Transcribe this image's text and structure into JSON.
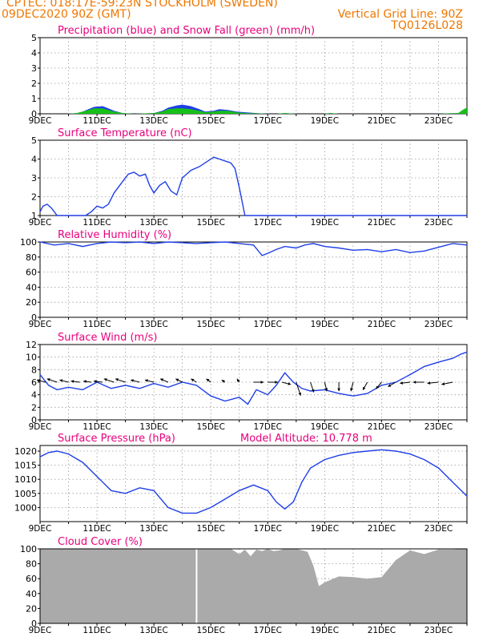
{
  "header": {
    "line1": "CPTEC:   018:17E-59:23N   STOCKHOLM (SWEDEN)",
    "line2_left": "09DEC2020 90Z (GMT)",
    "line2_right": "Vertical Grid Line: 90Z",
    "line3_right": "TQ0126L028",
    "color": "#ee7700"
  },
  "colors": {
    "title": "#e8007c",
    "precip": "#1f3fe8",
    "snow": "#17c017",
    "line": "#1f3fe8",
    "cloud": "#aaaaaa",
    "arrow": "#000000"
  },
  "x_ticks": [
    "9DEC",
    "11DEC",
    "13DEC",
    "15DEC",
    "17DEC",
    "19DEC",
    "21DEC",
    "23DEC"
  ],
  "chart_data": [
    {
      "type": "area",
      "title": "Precipitation (blue) and Snow Fall (green) (mm/h)",
      "ylim": [
        0,
        5
      ],
      "yticks": [
        "0",
        "1",
        "2",
        "3",
        "4",
        "5"
      ],
      "series": [
        {
          "name": "Precipitation",
          "x": [
            0,
            1.0,
            1.3,
            1.5,
            1.7,
            1.9,
            2.2,
            2.4,
            2.6,
            2.9,
            3.3,
            4.0,
            4.3,
            4.5,
            4.8,
            5.0,
            5.3,
            5.6,
            5.8,
            6.1,
            6.3,
            6.6,
            6.9,
            7.2,
            7.6,
            8.0,
            8.3,
            8.6,
            9.0,
            9.5,
            10.0,
            10.2,
            10.5,
            11.0,
            12.0,
            13.0,
            13.8,
            14.0,
            14.4,
            14.7,
            14.85,
            14.95,
            15.0
          ],
          "values": [
            0,
            0,
            0.05,
            0.15,
            0.3,
            0.45,
            0.5,
            0.35,
            0.2,
            0.05,
            0,
            0.05,
            0.2,
            0.4,
            0.55,
            0.6,
            0.5,
            0.3,
            0.15,
            0.2,
            0.3,
            0.25,
            0.15,
            0.1,
            0.05,
            0,
            0,
            0.05,
            0,
            0,
            0,
            0.05,
            0,
            0,
            0,
            0,
            0,
            0,
            0.03,
            0.05,
            0.25,
            0.35,
            0.4
          ]
        },
        {
          "name": "Snow Fall",
          "x": [
            0,
            1.0,
            1.3,
            1.5,
            1.7,
            1.9,
            2.2,
            2.4,
            2.6,
            2.9,
            3.3,
            4.0,
            4.3,
            4.5,
            4.8,
            5.0,
            5.3,
            5.6,
            5.8,
            6.1,
            6.3,
            6.6,
            6.9,
            7.2,
            7.6,
            8.0,
            8.3,
            8.6,
            9.0,
            9.5,
            10.0,
            10.2,
            10.5,
            11.0,
            12.0,
            13.0,
            13.8,
            14.0,
            14.4,
            14.7,
            14.85,
            14.95,
            15.0
          ],
          "values": [
            0,
            0,
            0.05,
            0.15,
            0.25,
            0.35,
            0.35,
            0.25,
            0.15,
            0.05,
            0,
            0.05,
            0.15,
            0.3,
            0.35,
            0.35,
            0.3,
            0.2,
            0.1,
            0.15,
            0.2,
            0.2,
            0.1,
            0.05,
            0.03,
            0,
            0,
            0.05,
            0,
            0,
            0,
            0.05,
            0,
            0,
            0,
            0,
            0,
            0,
            0.03,
            0.05,
            0.25,
            0.35,
            0.4
          ]
        }
      ]
    },
    {
      "type": "line",
      "title": "Surface Temperature (nC)",
      "ylim": [
        1,
        5
      ],
      "yticks": [
        "1",
        "2",
        "3",
        "4",
        "5"
      ],
      "series": [
        {
          "name": "Temperature",
          "x": [
            0,
            0.1,
            0.25,
            0.4,
            0.6,
            1.0,
            1.6,
            1.8,
            2.0,
            2.2,
            2.4,
            2.6,
            2.9,
            3.1,
            3.3,
            3.5,
            3.7,
            3.85,
            4.0,
            4.2,
            4.4,
            4.6,
            4.8,
            5.0,
            5.3,
            5.6,
            5.9,
            6.1,
            6.3,
            6.5,
            6.7,
            6.85,
            7.0,
            7.2,
            7.5,
            8.0,
            8.5,
            9.0,
            9.5,
            10.0,
            11.0,
            12.0,
            13.0,
            14.0,
            15.0
          ],
          "x_note": "",
          "values": [
            1.2,
            1.5,
            1.6,
            1.4,
            1.0,
            0.8,
            0.8,
            1.2,
            1.5,
            1.4,
            1.6,
            2.2,
            2.8,
            3.2,
            3.3,
            3.1,
            3.2,
            2.6,
            2.2,
            2.6,
            2.8,
            2.3,
            2.1,
            3.0,
            3.4,
            3.6,
            3.9,
            4.1,
            4.0,
            3.9,
            3.8,
            3.5,
            2.5,
            1.0,
            0.9,
            0.9,
            1.0,
            0.9,
            0.8,
            0.8,
            0.8,
            0.8,
            0.8,
            0.8,
            0.8
          ]
        }
      ]
    },
    {
      "type": "line",
      "title": "Relative Humidity (%)",
      "ylim": [
        0,
        100
      ],
      "yticks": [
        "0",
        "20",
        "40",
        "60",
        "80",
        "100"
      ],
      "series": [
        {
          "name": "Relative Humidity",
          "x": [
            0,
            0.5,
            1.0,
            1.5,
            2.0,
            2.5,
            3.0,
            3.5,
            4.0,
            4.5,
            5.0,
            5.5,
            6.0,
            6.5,
            7.0,
            7.5,
            7.8,
            8.0,
            8.3,
            8.6,
            9.0,
            9.3,
            9.6,
            10.0,
            10.5,
            11.0,
            11.5,
            12.0,
            12.5,
            13.0,
            13.5,
            14.0,
            14.5,
            15.0
          ],
          "values": [
            100,
            96,
            98,
            94,
            98,
            100,
            99,
            100,
            98,
            100,
            99,
            98,
            99,
            100,
            98,
            96,
            82,
            85,
            90,
            94,
            92,
            96,
            98,
            94,
            92,
            89,
            90,
            87,
            90,
            86,
            88,
            93,
            98,
            96
          ]
        }
      ]
    },
    {
      "type": "line",
      "title": "Surface Wind (m/s)",
      "ylim": [
        0,
        12
      ],
      "yticks": [
        "0",
        "2",
        "4",
        "6",
        "8",
        "10",
        "12"
      ],
      "series": [
        {
          "name": "Wind speed",
          "x": [
            0,
            0.3,
            0.6,
            1.0,
            1.5,
            2.0,
            2.5,
            3.0,
            3.5,
            4.0,
            4.5,
            5.0,
            5.5,
            6.0,
            6.5,
            7.0,
            7.3,
            7.6,
            8.0,
            8.3,
            8.6,
            8.9,
            9.2,
            9.5,
            10.0,
            10.5,
            11.0,
            11.5,
            12.0,
            12.5,
            13.0,
            13.5,
            14.0,
            14.5,
            14.8,
            15.0
          ],
          "values": [
            7.2,
            5.5,
            4.8,
            5.2,
            4.8,
            6.0,
            5.0,
            5.5,
            5.0,
            5.8,
            5.2,
            6.0,
            5.5,
            3.8,
            3.0,
            3.6,
            2.5,
            4.8,
            4.0,
            5.5,
            7.5,
            6.0,
            5.0,
            4.6,
            4.8,
            4.2,
            3.8,
            4.2,
            5.5,
            6.0,
            7.2,
            8.5,
            9.2,
            9.8,
            10.5,
            10.8
          ]
        }
      ],
      "wind_arrows": [
        {
          "x": 0.2,
          "u": 0.8,
          "v": -0.2
        },
        {
          "x": 0.6,
          "u": 0.9,
          "v": -0.3
        },
        {
          "x": 1.0,
          "u": 0.8,
          "v": -0.2
        },
        {
          "x": 1.4,
          "u": 0.8,
          "v": -0.1
        },
        {
          "x": 1.8,
          "u": 0.7,
          "v": -0.1
        },
        {
          "x": 2.2,
          "u": 0.8,
          "v": -0.1
        },
        {
          "x": 2.6,
          "u": 0.9,
          "v": -0.3
        },
        {
          "x": 3.0,
          "u": 0.9,
          "v": -0.3
        },
        {
          "x": 3.5,
          "u": 0.8,
          "v": -0.2
        },
        {
          "x": 4.0,
          "u": 0.8,
          "v": -0.2
        },
        {
          "x": 4.5,
          "u": 0.7,
          "v": -0.3
        },
        {
          "x": 5.0,
          "u": 0.6,
          "v": -0.3
        },
        {
          "x": 5.5,
          "u": 0.5,
          "v": -0.3
        },
        {
          "x": 6.0,
          "u": 0.4,
          "v": -0.3
        },
        {
          "x": 6.5,
          "u": 0.3,
          "v": -0.2
        },
        {
          "x": 7.0,
          "u": 0.2,
          "v": -0.3
        },
        {
          "x": 7.5,
          "u": -0.9,
          "v": 0.0
        },
        {
          "x": 8.0,
          "u": -0.9,
          "v": 0.0
        },
        {
          "x": 8.5,
          "u": -0.8,
          "v": 0.2
        },
        {
          "x": 9.0,
          "u": -0.4,
          "v": 1.2
        },
        {
          "x": 9.5,
          "u": -0.3,
          "v": 0.9
        },
        {
          "x": 10.0,
          "u": -0.2,
          "v": 0.8
        },
        {
          "x": 10.5,
          "u": 0.0,
          "v": 0.8
        },
        {
          "x": 11.0,
          "u": 0.2,
          "v": 0.8
        },
        {
          "x": 11.5,
          "u": 0.4,
          "v": 0.7
        },
        {
          "x": 12.0,
          "u": 0.5,
          "v": 0.6
        },
        {
          "x": 12.5,
          "u": 0.7,
          "v": 0.4
        },
        {
          "x": 13.0,
          "u": 0.9,
          "v": 0.1
        },
        {
          "x": 13.5,
          "u": 1.0,
          "v": 0.0
        },
        {
          "x": 14.0,
          "u": 1.0,
          "v": 0.1
        },
        {
          "x": 14.5,
          "u": 1.0,
          "v": 0.2
        }
      ]
    },
    {
      "type": "line",
      "title": "Surface Pressure (hPa)",
      "annotation": "Model Altitude: 10.778 m",
      "ylim": [
        995,
        1022
      ],
      "yticks": [
        "1000",
        "1005",
        "1010",
        "1015",
        "1020"
      ],
      "series": [
        {
          "name": "Surface Pressure",
          "x": [
            0,
            0.3,
            0.6,
            1.0,
            1.5,
            2.0,
            2.5,
            3.0,
            3.5,
            4.0,
            4.5,
            5.0,
            5.5,
            6.0,
            6.5,
            7.0,
            7.5,
            8.0,
            8.3,
            8.6,
            8.9,
            9.2,
            9.5,
            10.0,
            10.5,
            11.0,
            11.5,
            12.0,
            12.5,
            13.0,
            13.5,
            14.0,
            14.5,
            15.0
          ],
          "values": [
            1018,
            1019.5,
            1020,
            1019,
            1016,
            1011,
            1006,
            1005,
            1007,
            1006,
            1000,
            998,
            998,
            1000,
            1003,
            1006,
            1008,
            1006,
            1002,
            999.5,
            1002,
            1009,
            1014,
            1017,
            1018.5,
            1019.5,
            1020,
            1020.5,
            1020,
            1019,
            1017,
            1014,
            1009,
            1004
          ]
        }
      ]
    },
    {
      "type": "area",
      "title": "Cloud Cover (%)",
      "ylim": [
        0,
        100
      ],
      "yticks": [
        "0",
        "20",
        "40",
        "60",
        "80",
        "100"
      ],
      "series": [
        {
          "name": "Cloud Cover",
          "x": [
            0,
            2.0,
            4.0,
            6.0,
            6.7,
            7.0,
            7.2,
            7.4,
            7.6,
            7.8,
            8.0,
            8.2,
            8.4,
            8.6,
            9.0,
            9.4,
            9.6,
            9.8,
            10.0,
            10.5,
            11.0,
            11.5,
            12.0,
            12.5,
            13.0,
            13.5,
            14.0,
            14.5,
            15.0
          ],
          "values": [
            100,
            100,
            100,
            100,
            100,
            93,
            99,
            90,
            99,
            97,
            100,
            97,
            98,
            100,
            100,
            96,
            78,
            50,
            55,
            63,
            62,
            60,
            62,
            85,
            98,
            93,
            99,
            99,
            100
          ]
        }
      ],
      "gap_x": 5.5
    }
  ]
}
